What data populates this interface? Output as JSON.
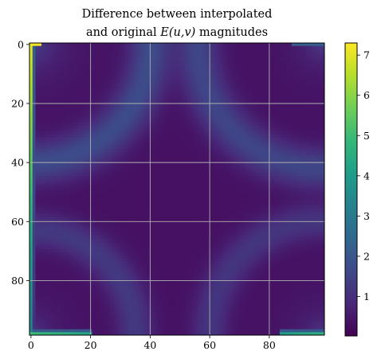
{
  "chart_data": {
    "type": "heatmap",
    "title_line1": "Difference between interpolated",
    "title_line2_pre": "and original ",
    "title_math": "E(u,v)",
    "title_line2_post": " magnitudes",
    "xlabel": "",
    "ylabel": "",
    "x_ticks": [
      "0",
      "20",
      "40",
      "60",
      "80"
    ],
    "y_ticks": [
      "0",
      "20",
      "40",
      "60",
      "80"
    ],
    "x_tick_values": [
      0,
      20,
      40,
      60,
      80
    ],
    "y_tick_values": [
      0,
      20,
      40,
      60,
      80
    ],
    "grid_size": [
      99,
      99
    ],
    "xlim": [
      -0.5,
      98.5
    ],
    "ylim": [
      98.5,
      -0.5
    ],
    "colorscale": "viridis",
    "colorbar_range": [
      0.02,
      7.3
    ],
    "colorbar_ticks": [
      "1",
      "2",
      "3",
      "4",
      "5",
      "6",
      "7"
    ],
    "colorbar_tick_values": [
      1,
      2,
      3,
      4,
      5,
      6,
      7
    ],
    "grid": true,
    "grid_color": "#b0b0b0",
    "background_level": 0.35,
    "features": [
      {
        "name": "left-edge-strip",
        "value": 6.5
      },
      {
        "name": "bottom-left-strip",
        "value": 4.8
      },
      {
        "name": "bottom-right-strip",
        "value": 4.5
      },
      {
        "name": "top-left-corner",
        "value": 7.2
      },
      {
        "name": "diagonal-arc-top-left",
        "value": 1.6
      },
      {
        "name": "diagonal-arc-top-right",
        "value": 1.5
      },
      {
        "name": "diagonal-arc-bottom-left",
        "value": 1.2
      },
      {
        "name": "diagonal-arc-bottom-right",
        "value": 1.1
      }
    ]
  }
}
